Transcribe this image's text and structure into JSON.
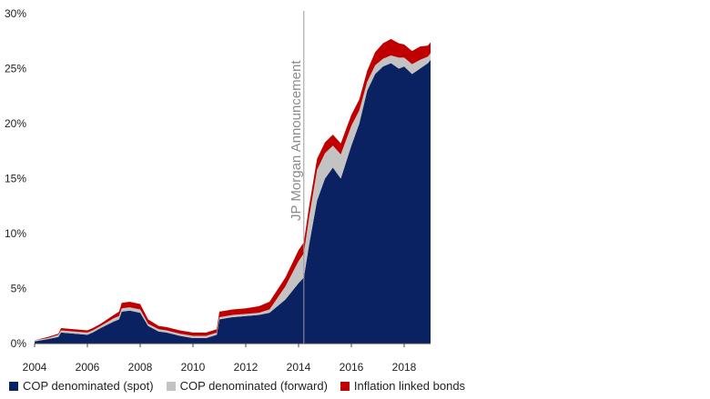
{
  "chart_data": {
    "type": "area",
    "stacked": true,
    "title": "",
    "xlabel": "",
    "ylabel": "",
    "x_ticks": [
      "2004",
      "2006",
      "2008",
      "2010",
      "2012",
      "2014",
      "2016",
      "2018"
    ],
    "y_ticks": [
      "0%",
      "5%",
      "10%",
      "15%",
      "20%",
      "25%",
      "30%"
    ],
    "xlim": [
      2004,
      2019
    ],
    "ylim": [
      0,
      30
    ],
    "grid": false,
    "legend_position": "bottom",
    "annotation": {
      "label": "JP Morgan Announcement",
      "x": 2014.2
    },
    "x": [
      2004.0,
      2004.5,
      2004.9,
      2005.0,
      2005.5,
      2006.0,
      2006.2,
      2006.5,
      2007.0,
      2007.2,
      2007.3,
      2007.6,
      2008.0,
      2008.3,
      2008.7,
      2009.0,
      2009.5,
      2010.0,
      2010.5,
      2010.9,
      2011.0,
      2011.5,
      2012.0,
      2012.5,
      2012.9,
      2013.5,
      2014.0,
      2014.2,
      2014.4,
      2014.7,
      2015.0,
      2015.3,
      2015.6,
      2016.0,
      2016.3,
      2016.6,
      2016.9,
      2017.2,
      2017.5,
      2017.8,
      2018.0,
      2018.3,
      2018.6,
      2018.9,
      2019.0
    ],
    "series": [
      {
        "name": "COP denominated (spot)",
        "color": "#0b2262",
        "values": [
          0.2,
          0.4,
          0.6,
          1.0,
          0.9,
          0.8,
          1.0,
          1.4,
          2.0,
          2.2,
          2.9,
          3.0,
          2.8,
          1.6,
          1.1,
          1.0,
          0.7,
          0.5,
          0.5,
          0.8,
          2.2,
          2.4,
          2.5,
          2.6,
          2.8,
          4.0,
          5.5,
          6.0,
          9.0,
          13.0,
          15.0,
          16.0,
          15.0,
          18.0,
          20.0,
          23.0,
          24.5,
          25.2,
          25.5,
          25.0,
          25.2,
          24.5,
          25.0,
          25.5,
          25.8
        ]
      },
      {
        "name": "COP denominated (forward)",
        "color": "#c3c3c3",
        "values": [
          0.1,
          0.1,
          0.2,
          0.2,
          0.2,
          0.2,
          0.2,
          0.2,
          0.3,
          0.3,
          0.3,
          0.3,
          0.3,
          0.2,
          0.2,
          0.2,
          0.2,
          0.2,
          0.2,
          0.2,
          0.2,
          0.2,
          0.2,
          0.2,
          0.3,
          1.2,
          2.0,
          2.2,
          2.5,
          2.8,
          2.3,
          2.0,
          2.2,
          1.8,
          1.2,
          0.8,
          0.8,
          0.7,
          0.7,
          1.0,
          0.8,
          0.9,
          0.8,
          0.6,
          0.6
        ]
      },
      {
        "name": "Inflation linked bonds",
        "color": "#c00000",
        "values": [
          0.0,
          0.1,
          0.1,
          0.2,
          0.2,
          0.2,
          0.2,
          0.2,
          0.3,
          0.4,
          0.5,
          0.5,
          0.5,
          0.4,
          0.3,
          0.3,
          0.3,
          0.3,
          0.3,
          0.3,
          0.5,
          0.5,
          0.5,
          0.6,
          0.7,
          0.8,
          1.0,
          1.0,
          1.0,
          1.0,
          1.0,
          1.0,
          1.0,
          1.0,
          1.0,
          1.0,
          1.2,
          1.4,
          1.5,
          1.3,
          1.2,
          1.2,
          1.2,
          1.0,
          1.0
        ]
      }
    ]
  }
}
